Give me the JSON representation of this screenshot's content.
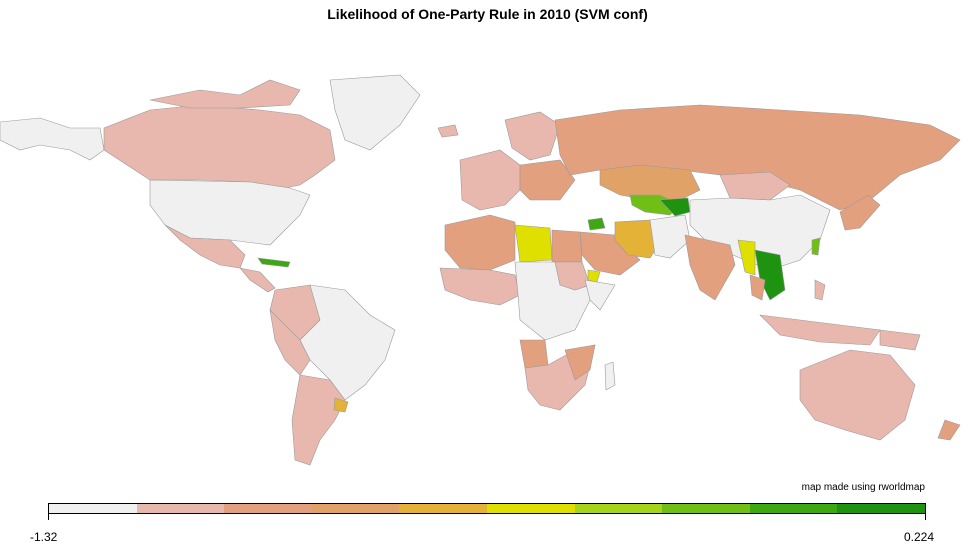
{
  "title": "Likelihood of One-Party Rule in 2010 (SVM conf)",
  "credit": "map made using rworldmap",
  "legend": {
    "min_label": "-1.32",
    "max_label": "0.224",
    "colors": [
      "#f0f0f0",
      "#e8b8ae",
      "#e3a07f",
      "#e1a268",
      "#e4b236",
      "#e0e000",
      "#a6d31c",
      "#6fbf16",
      "#3da812",
      "#1e9310"
    ]
  },
  "palette": {
    "ocean": "#ffffff",
    "border": "#9a9a9a",
    "no_data": "#f0f0f0"
  }
}
